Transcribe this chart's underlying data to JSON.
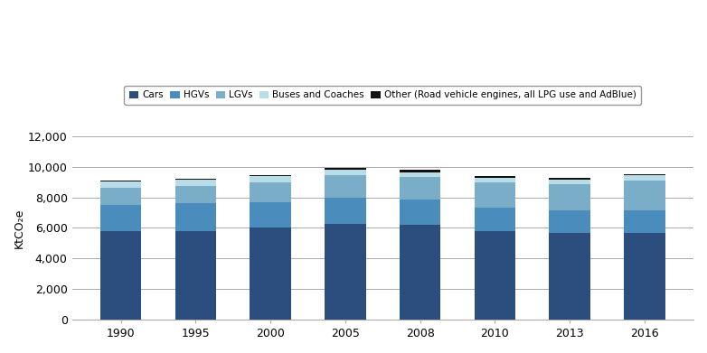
{
  "years": [
    "1990",
    "1995",
    "2000",
    "2005",
    "2008",
    "2010",
    "2013",
    "2016"
  ],
  "cars": [
    5780,
    5790,
    6050,
    6280,
    6180,
    5780,
    5660,
    5650
  ],
  "hgvs": [
    1750,
    1820,
    1620,
    1680,
    1680,
    1520,
    1500,
    1520
  ],
  "lgvs": [
    1120,
    1120,
    1320,
    1500,
    1480,
    1680,
    1730,
    1960
  ],
  "buses_coaches": [
    410,
    410,
    390,
    340,
    320,
    310,
    290,
    310
  ],
  "other": [
    55,
    55,
    60,
    100,
    130,
    80,
    75,
    80
  ],
  "colors": {
    "cars": "#2B4E7E",
    "hgvs": "#4A8DBD",
    "lgvs": "#7AAEC8",
    "buses_coaches": "#B8DDE8",
    "other": "#111111"
  },
  "ylabel": "KtCO₂e",
  "ylim": [
    0,
    12000
  ],
  "yticks": [
    0,
    2000,
    4000,
    6000,
    8000,
    10000,
    12000
  ],
  "legend_labels": [
    "Cars",
    "HGVs",
    "LGVs",
    "Buses and Coaches",
    "Other (Road vehicle engines, all LPG use and AdBlue)"
  ],
  "bar_width": 0.55,
  "background_color": "#FFFFFF",
  "grid_color": "#AAAAAA"
}
